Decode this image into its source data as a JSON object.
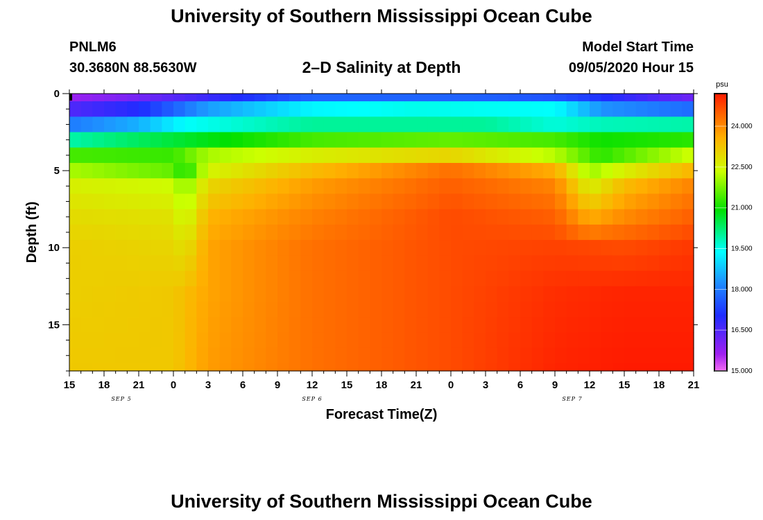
{
  "page": {
    "title_top": "University of Southern Mississippi Ocean Cube",
    "title_bottom": "University of Southern Mississippi Ocean Cube",
    "station_id": "PNLM6",
    "coordinates": "30.3680N 88.5630W",
    "plot_title": "2–D Salinity at Depth",
    "model_start_label": "Model Start Time",
    "model_start_value": "09/05/2020 Hour 15"
  },
  "chart_data": {
    "type": "heatmap",
    "title": "2–D Salinity at Depth",
    "xlabel": "Forecast Time(Z)",
    "ylabel": "Depth (ft)",
    "x_ticks": [
      "15",
      "18",
      "21",
      "0",
      "3",
      "6",
      "9",
      "12",
      "15",
      "18",
      "21",
      "0",
      "3",
      "6",
      "9",
      "12",
      "15",
      "18",
      "21"
    ],
    "date_labels": [
      {
        "label": "SEP 5",
        "tick_index": 1.5
      },
      {
        "label": "SEP 6",
        "tick_index": 7
      },
      {
        "label": "SEP 7",
        "tick_index": 14.5
      }
    ],
    "y_ticks": [
      0,
      5,
      10,
      15
    ],
    "ylim": [
      0,
      18
    ],
    "x_hours": [
      0,
      54
    ],
    "colorbar": {
      "unit": "psu",
      "ticks": [
        "15.000",
        "16.500",
        "18.000",
        "19.500",
        "21.000",
        "22.500",
        "24.000"
      ],
      "range": [
        15.0,
        25.2
      ]
    },
    "depth_profiles": [
      {
        "depth_ft": 0.0,
        "keyframes": [
          [
            0,
            15.4
          ],
          [
            12,
            16.2
          ],
          [
            21,
            17.2
          ],
          [
            36,
            17.1
          ],
          [
            45,
            16.8
          ],
          [
            54,
            15.6
          ]
        ]
      },
      {
        "depth_ft": 1.0,
        "keyframes": [
          [
            0,
            16.5
          ],
          [
            6,
            17.0
          ],
          [
            12,
            18.4
          ],
          [
            21,
            19.3
          ],
          [
            30,
            19.5
          ],
          [
            42,
            19.4
          ],
          [
            46,
            18.3
          ],
          [
            54,
            17.8
          ]
        ]
      },
      {
        "depth_ft": 2.0,
        "keyframes": [
          [
            0,
            18.0
          ],
          [
            6,
            18.6
          ],
          [
            10,
            19.4
          ],
          [
            21,
            20.0
          ],
          [
            36,
            20.0
          ],
          [
            42,
            19.6
          ],
          [
            46,
            19.8
          ],
          [
            54,
            19.9
          ]
        ]
      },
      {
        "depth_ft": 3.0,
        "keyframes": [
          [
            0,
            19.9
          ],
          [
            12,
            20.8
          ],
          [
            21,
            21.4
          ],
          [
            33,
            21.6
          ],
          [
            42,
            21.4
          ],
          [
            46,
            21.0
          ],
          [
            54,
            21.2
          ]
        ]
      },
      {
        "depth_ft": 4.0,
        "keyframes": [
          [
            0,
            21.4
          ],
          [
            9,
            21.3
          ],
          [
            12,
            22.1
          ],
          [
            21,
            22.6
          ],
          [
            33,
            23.0
          ],
          [
            42,
            22.2
          ],
          [
            46,
            21.2
          ],
          [
            54,
            22.4
          ]
        ]
      },
      {
        "depth_ft": 5.0,
        "keyframes": [
          [
            0,
            22.1
          ],
          [
            9,
            21.6
          ],
          [
            10,
            21.0
          ],
          [
            12,
            22.5
          ],
          [
            21,
            23.4
          ],
          [
            33,
            24.3
          ],
          [
            42,
            23.6
          ],
          [
            45,
            22.0
          ],
          [
            48,
            22.6
          ],
          [
            54,
            23.5
          ]
        ]
      },
      {
        "depth_ft": 6.0,
        "keyframes": [
          [
            0,
            22.6
          ],
          [
            9,
            22.4
          ],
          [
            10,
            21.8
          ],
          [
            12,
            23.0
          ],
          [
            21,
            23.8
          ],
          [
            33,
            24.5
          ],
          [
            42,
            24.1
          ],
          [
            45,
            22.6
          ],
          [
            48,
            23.4
          ],
          [
            54,
            24.1
          ]
        ]
      },
      {
        "depth_ft": 8.0,
        "keyframes": [
          [
            0,
            22.9
          ],
          [
            9,
            22.8
          ],
          [
            10,
            22.3
          ],
          [
            12,
            23.5
          ],
          [
            21,
            24.1
          ],
          [
            33,
            24.7
          ],
          [
            42,
            24.5
          ],
          [
            45,
            23.6
          ],
          [
            48,
            24.0
          ],
          [
            54,
            24.5
          ]
        ]
      },
      {
        "depth_ft": 10.0,
        "keyframes": [
          [
            0,
            23.1
          ],
          [
            9,
            23.0
          ],
          [
            10,
            22.8
          ],
          [
            12,
            23.7
          ],
          [
            21,
            24.3
          ],
          [
            33,
            24.7
          ],
          [
            42,
            24.8
          ],
          [
            48,
            24.7
          ],
          [
            54,
            24.9
          ]
        ]
      },
      {
        "depth_ft": 13.0,
        "keyframes": [
          [
            0,
            23.1
          ],
          [
            9,
            23.2
          ],
          [
            12,
            23.7
          ],
          [
            21,
            24.3
          ],
          [
            33,
            24.7
          ],
          [
            42,
            25.0
          ],
          [
            48,
            25.1
          ],
          [
            54,
            25.1
          ]
        ]
      },
      {
        "depth_ft": 18.0,
        "keyframes": [
          [
            0,
            23.2
          ],
          [
            9,
            23.2
          ],
          [
            12,
            23.8
          ],
          [
            21,
            24.3
          ],
          [
            33,
            24.7
          ],
          [
            42,
            25.1
          ],
          [
            48,
            25.2
          ],
          [
            54,
            25.2
          ]
        ]
      }
    ]
  }
}
